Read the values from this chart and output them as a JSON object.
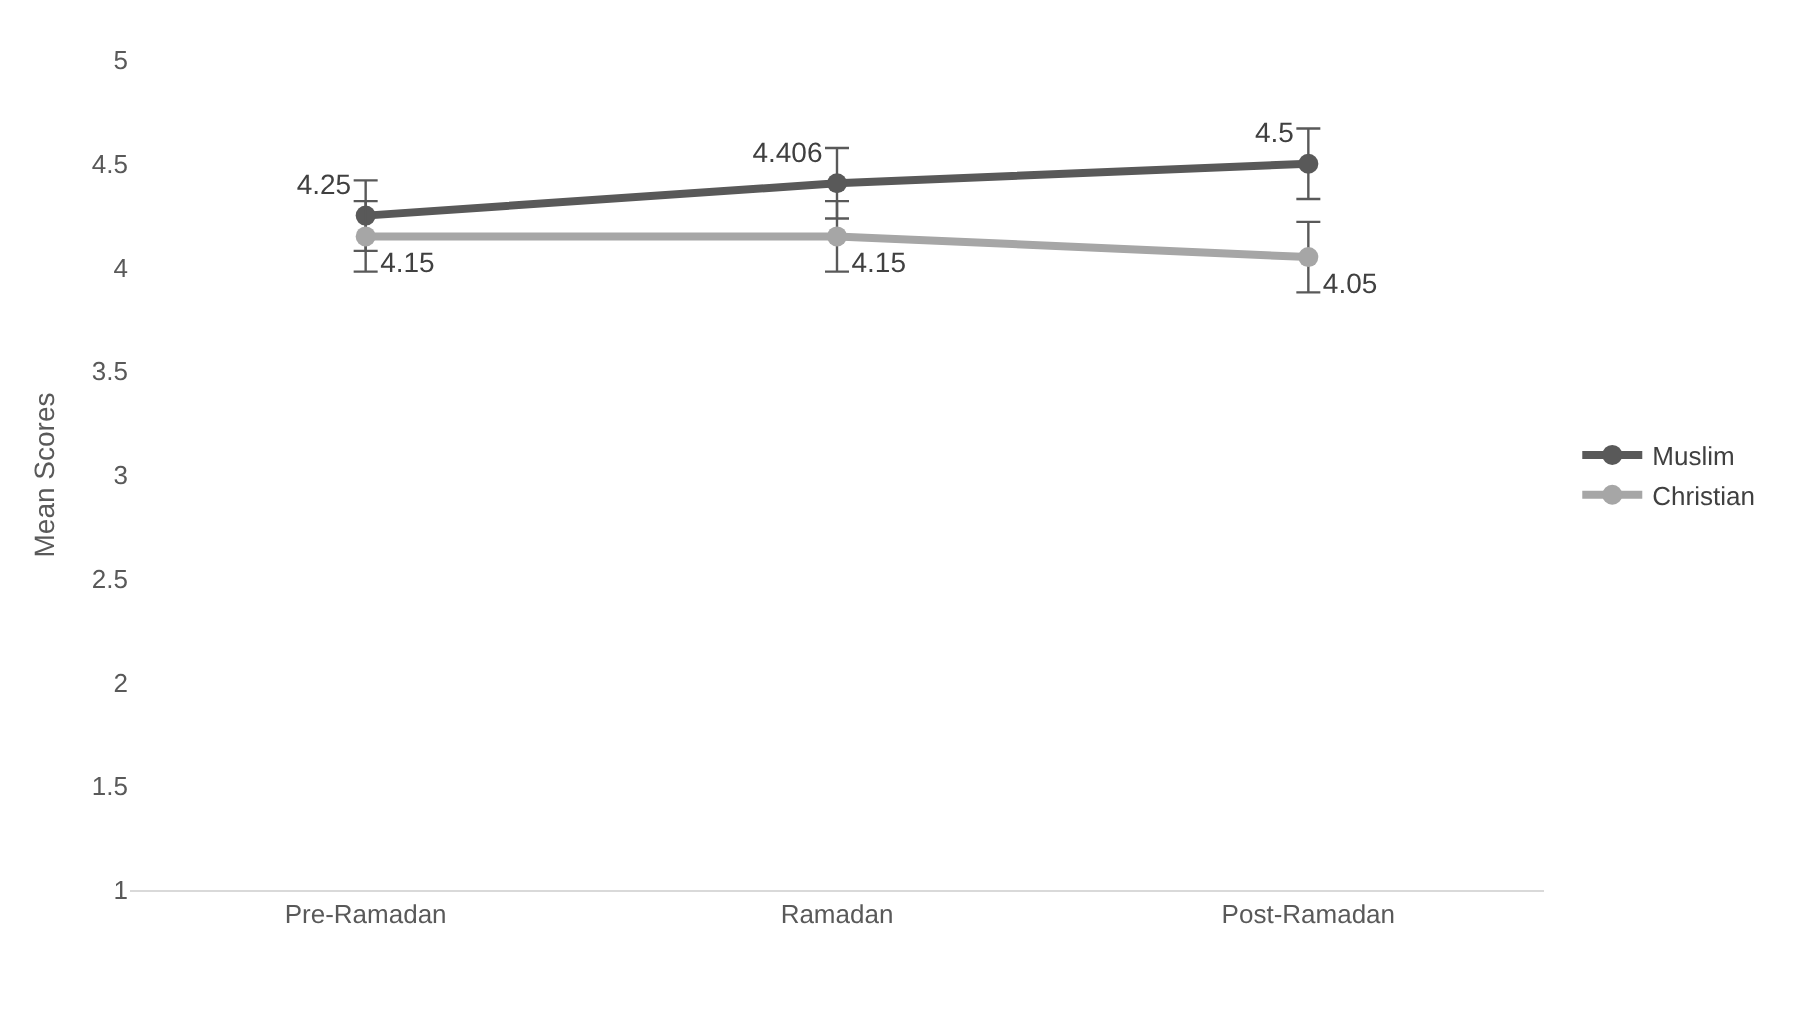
{
  "chart_data": {
    "type": "line",
    "ylabel": "Mean Scores",
    "categories": [
      "Pre-Ramadan",
      "Ramadan",
      "Post-Ramadan"
    ],
    "series": [
      {
        "name": "Muslim",
        "color": "#595959",
        "values": [
          4.25,
          4.406,
          4.5
        ],
        "errors": [
          0.17,
          0.17,
          0.17
        ]
      },
      {
        "name": "Christian",
        "color": "#a6a6a6",
        "values": [
          4.15,
          4.15,
          4.05
        ],
        "errors": [
          0.17,
          0.17,
          0.17
        ]
      }
    ],
    "ylim": [
      1,
      5
    ],
    "yticks": [
      1,
      1.5,
      2,
      2.5,
      3,
      3.5,
      4,
      4.5,
      5
    ],
    "grid": false,
    "legend": "right",
    "marker": "circle",
    "line_style": "solid",
    "data_labels": true
  }
}
